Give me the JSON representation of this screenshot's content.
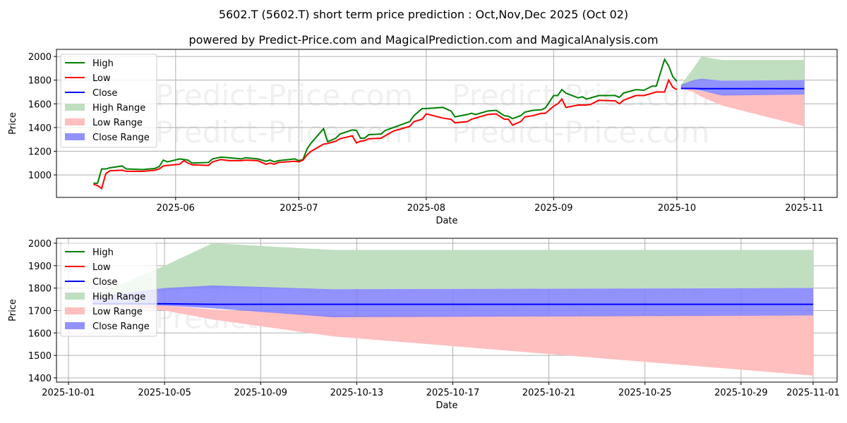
{
  "title": "5602.T (5602.T) short term price prediction : Oct,Nov,Dec 2025 (Oct 02)",
  "subtitle": "powered by Predict-Price.com and MagicalPrediction.com and MagicalAnalysis.com",
  "watermark": "Predict-Price.com",
  "colors": {
    "high": "#008000",
    "low": "#ff0000",
    "close": "#0000ff",
    "high_range": "#c0dfc0",
    "low_range": "#ffbfbf",
    "close_range": "#7f7fff"
  },
  "legend": [
    "High",
    "Low",
    "Close",
    "High Range",
    "Low Range",
    "Close Range"
  ],
  "chart_data": [
    {
      "type": "line",
      "xlabel": "Date",
      "ylabel": "Price",
      "ylim": [
        810,
        2060
      ],
      "xlim": [
        "2025-05-03",
        "2025-11-09"
      ],
      "yticks": [
        1000,
        1200,
        1400,
        1600,
        1800,
        2000
      ],
      "xticks": [
        "2025-06",
        "2025-07",
        "2025-08",
        "2025-09",
        "2025-10",
        "2025-11"
      ],
      "xtick_dates": [
        "2025-06-01",
        "2025-07-01",
        "2025-08-01",
        "2025-09-01",
        "2025-10-01",
        "2025-11-01"
      ],
      "history": [
        [
          "2025-05-12",
          930,
          920
        ],
        [
          "2025-05-13",
          930,
          910
        ],
        [
          "2025-05-14",
          1050,
          885
        ],
        [
          "2025-05-15",
          1050,
          1010
        ],
        [
          "2025-05-16",
          1060,
          1035
        ],
        [
          "2025-05-19",
          1075,
          1040
        ],
        [
          "2025-05-20",
          1050,
          1030
        ],
        [
          "2025-05-24",
          1045,
          1030
        ],
        [
          "2025-05-27",
          1055,
          1040
        ],
        [
          "2025-05-28",
          1070,
          1050
        ],
        [
          "2025-05-29",
          1125,
          1075
        ],
        [
          "2025-05-30",
          1110,
          1080
        ],
        [
          "2025-06-02",
          1135,
          1090
        ],
        [
          "2025-06-03",
          1130,
          1120
        ],
        [
          "2025-06-04",
          1125,
          1100
        ],
        [
          "2025-06-05",
          1100,
          1085
        ],
        [
          "2025-06-09",
          1105,
          1080
        ],
        [
          "2025-06-10",
          1135,
          1110
        ],
        [
          "2025-06-12",
          1150,
          1130
        ],
        [
          "2025-06-14",
          1145,
          1120
        ],
        [
          "2025-06-17",
          1135,
          1120
        ],
        [
          "2025-06-18",
          1145,
          1125
        ],
        [
          "2025-06-21",
          1135,
          1120
        ],
        [
          "2025-06-23",
          1115,
          1090
        ],
        [
          "2025-06-24",
          1125,
          1100
        ],
        [
          "2025-06-25",
          1110,
          1090
        ],
        [
          "2025-06-26",
          1120,
          1105
        ],
        [
          "2025-06-30",
          1135,
          1115
        ],
        [
          "2025-07-01",
          1120,
          1110
        ],
        [
          "2025-07-02",
          1130,
          1125
        ],
        [
          "2025-07-03",
          1220,
          1170
        ],
        [
          "2025-07-04",
          1270,
          1200
        ],
        [
          "2025-07-07",
          1390,
          1260
        ],
        [
          "2025-07-08",
          1280,
          1265
        ],
        [
          "2025-07-10",
          1310,
          1285
        ],
        [
          "2025-07-11",
          1345,
          1305
        ],
        [
          "2025-07-14",
          1380,
          1330
        ],
        [
          "2025-07-15",
          1375,
          1270
        ],
        [
          "2025-07-16",
          1310,
          1285
        ],
        [
          "2025-07-17",
          1310,
          1290
        ],
        [
          "2025-07-18",
          1340,
          1305
        ],
        [
          "2025-07-21",
          1345,
          1310
        ],
        [
          "2025-07-22",
          1375,
          1330
        ],
        [
          "2025-07-24",
          1400,
          1370
        ],
        [
          "2025-07-28",
          1450,
          1410
        ],
        [
          "2025-07-29",
          1500,
          1450
        ],
        [
          "2025-07-31",
          1560,
          1470
        ],
        [
          "2025-08-01",
          1560,
          1515
        ],
        [
          "2025-08-05",
          1570,
          1480
        ],
        [
          "2025-08-07",
          1540,
          1470
        ],
        [
          "2025-08-08",
          1490,
          1440
        ],
        [
          "2025-08-11",
          1510,
          1450
        ],
        [
          "2025-08-12",
          1520,
          1470
        ],
        [
          "2025-08-13",
          1510,
          1480
        ],
        [
          "2025-08-16",
          1540,
          1510
        ],
        [
          "2025-08-18",
          1545,
          1515
        ],
        [
          "2025-08-20",
          1500,
          1470
        ],
        [
          "2025-08-21",
          1495,
          1470
        ],
        [
          "2025-08-22",
          1475,
          1420
        ],
        [
          "2025-08-24",
          1500,
          1450
        ],
        [
          "2025-08-25",
          1530,
          1490
        ],
        [
          "2025-08-27",
          1545,
          1500
        ],
        [
          "2025-08-29",
          1550,
          1520
        ],
        [
          "2025-08-30",
          1565,
          1520
        ],
        [
          "2025-09-01",
          1670,
          1580
        ],
        [
          "2025-09-02",
          1670,
          1600
        ],
        [
          "2025-09-03",
          1720,
          1640
        ],
        [
          "2025-09-04",
          1690,
          1570
        ],
        [
          "2025-09-07",
          1650,
          1590
        ],
        [
          "2025-09-08",
          1660,
          1590
        ],
        [
          "2025-09-09",
          1640,
          1590
        ],
        [
          "2025-09-10",
          1650,
          1595
        ],
        [
          "2025-09-12",
          1670,
          1630
        ],
        [
          "2025-09-16",
          1670,
          1625
        ],
        [
          "2025-09-17",
          1655,
          1600
        ],
        [
          "2025-09-18",
          1690,
          1630
        ],
        [
          "2025-09-21",
          1720,
          1670
        ],
        [
          "2025-09-23",
          1715,
          1670
        ],
        [
          "2025-09-25",
          1750,
          1690
        ],
        [
          "2025-09-26",
          1750,
          1700
        ],
        [
          "2025-09-28",
          1975,
          1700
        ],
        [
          "2025-09-29",
          1920,
          1800
        ],
        [
          "2025-09-30",
          1830,
          1740
        ],
        [
          "2025-10-01",
          1790,
          1720
        ]
      ]
    },
    {
      "type": "area",
      "xlabel": "Date",
      "ylabel": "Price",
      "ylim": [
        1381,
        2022
      ],
      "xlim": [
        "2025-09-30.5",
        "2025-11-02"
      ],
      "yticks": [
        1400,
        1500,
        1600,
        1700,
        1800,
        1900,
        2000
      ],
      "xticks": [
        "2025-10-01",
        "2025-10-05",
        "2025-10-09",
        "2025-10-13",
        "2025-10-17",
        "2025-10-21",
        "2025-10-25",
        "2025-10-29",
        "2025-11-01"
      ]
    }
  ],
  "forecast": {
    "dates": [
      "2025-10-02",
      "2025-10-05",
      "2025-10-07",
      "2025-10-12",
      "2025-11-01"
    ],
    "close": [
      1730,
      1730,
      1728,
      1728,
      1728
    ],
    "high_upper": [
      1760,
      1900,
      2000,
      1970,
      1970
    ],
    "high_lower": [
      1740,
      1790,
      1800,
      1795,
      1800
    ],
    "close_upper": [
      1760,
      1800,
      1812,
      1795,
      1800
    ],
    "close_lower": [
      1730,
      1722,
      1710,
      1670,
      1678
    ],
    "low_upper": [
      1740,
      1722,
      1705,
      1680,
      1680
    ],
    "low_lower": [
      1730,
      1700,
      1660,
      1585,
      1410
    ]
  }
}
